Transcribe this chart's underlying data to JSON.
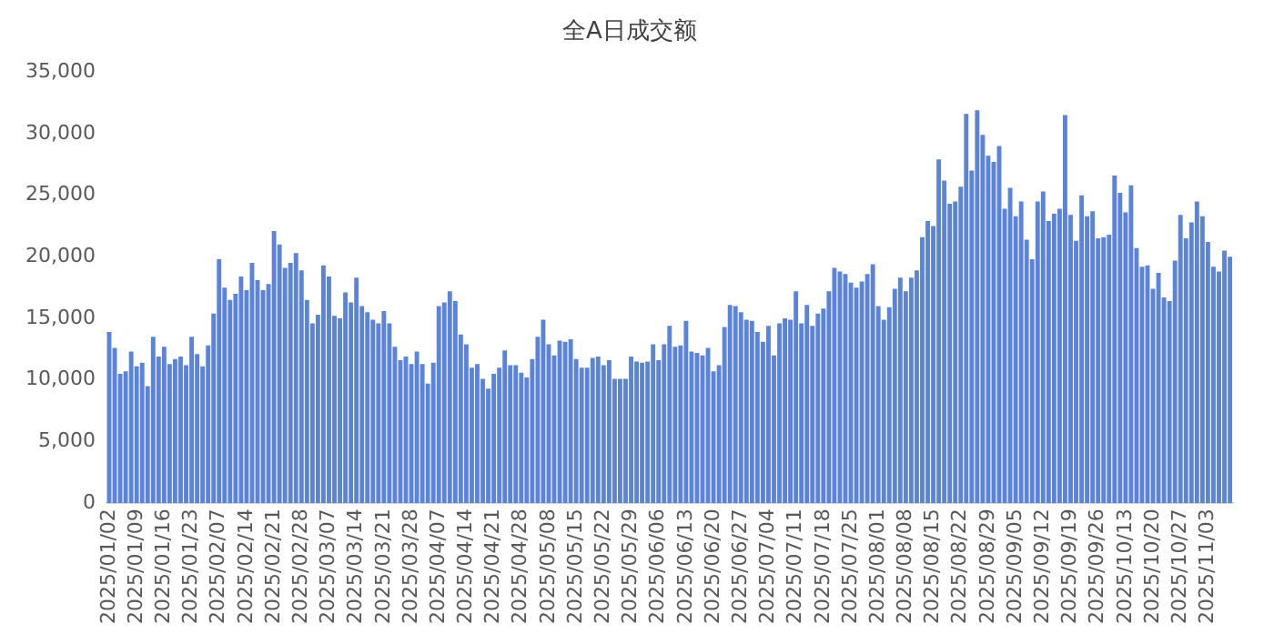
{
  "chart_data": {
    "type": "bar",
    "title": "全A日成交额",
    "color": "#5b83d9",
    "grid": false,
    "legend": false,
    "ylim": [
      0,
      35000
    ],
    "yticks": [
      0,
      {
        "value": 5000,
        "label": "5,000"
      },
      {
        "value": 10000,
        "label": "10,000"
      },
      {
        "value": 15000,
        "label": "15,000"
      },
      {
        "value": 20000,
        "label": "20,000"
      },
      {
        "value": 25000,
        "label": "25,000"
      },
      {
        "value": 30000,
        "label": "30,000"
      },
      {
        "value": 35000,
        "label": "35,000"
      }
    ],
    "categories": [
      "2025/01/02",
      null,
      null,
      null,
      null,
      "2025/01/09",
      null,
      null,
      null,
      null,
      "2025/01/16",
      null,
      null,
      null,
      null,
      "2025/01/23",
      null,
      null,
      null,
      null,
      "2025/02/07",
      null,
      null,
      null,
      null,
      "2025/02/14",
      null,
      null,
      null,
      null,
      "2025/02/21",
      null,
      null,
      null,
      null,
      "2025/02/28",
      null,
      null,
      null,
      null,
      "2025/03/07",
      null,
      null,
      null,
      null,
      "2025/03/14",
      null,
      null,
      null,
      null,
      "2025/03/21",
      null,
      null,
      null,
      null,
      "2025/03/28",
      null,
      null,
      null,
      null,
      "2025/04/07",
      null,
      null,
      null,
      null,
      "2025/04/14",
      null,
      null,
      null,
      null,
      "2025/04/21",
      null,
      null,
      null,
      null,
      "2025/04/28",
      null,
      null,
      null,
      null,
      "2025/05/08",
      null,
      null,
      null,
      null,
      "2025/05/15",
      null,
      null,
      null,
      null,
      "2025/05/22",
      null,
      null,
      null,
      null,
      "2025/05/29",
      null,
      null,
      null,
      null,
      "2025/06/06",
      null,
      null,
      null,
      null,
      "2025/06/13",
      null,
      null,
      null,
      null,
      "2025/06/20",
      null,
      null,
      null,
      null,
      "2025/06/27",
      null,
      null,
      null,
      null,
      "2025/07/04",
      null,
      null,
      null,
      null,
      "2025/07/11",
      null,
      null,
      null,
      null,
      "2025/07/18",
      null,
      null,
      null,
      null,
      "2025/07/25",
      null,
      null,
      null,
      null,
      "2025/08/01",
      null,
      null,
      null,
      null,
      "2025/08/08",
      null,
      null,
      null,
      null,
      "2025/08/15",
      null,
      null,
      null,
      null,
      "2025/08/22",
      null,
      null,
      null,
      null,
      "2025/08/29",
      null,
      null,
      null,
      null,
      "2025/09/05",
      null,
      null,
      null,
      null,
      "2025/09/12",
      null,
      null,
      null,
      null,
      "2025/09/19",
      null,
      null,
      null,
      null,
      "2025/09/26",
      null,
      null,
      null,
      null,
      "2025/10/13",
      null,
      null,
      null,
      null,
      "2025/10/20",
      null,
      null,
      null,
      null,
      "2025/10/27",
      null,
      null,
      null,
      null,
      "2025/11/03",
      null,
      null,
      null,
      null
    ],
    "values": [
      13900,
      12600,
      10500,
      10700,
      12300,
      11100,
      11400,
      9500,
      13500,
      11900,
      12700,
      11300,
      11700,
      11900,
      11200,
      13500,
      12100,
      11100,
      12800,
      15400,
      19800,
      17500,
      16500,
      17000,
      18400,
      17300,
      19500,
      18100,
      17300,
      17800,
      22100,
      21000,
      19100,
      19500,
      20300,
      18900,
      16500,
      14600,
      15300,
      19300,
      18400,
      15200,
      15000,
      17100,
      16300,
      18300,
      16000,
      15500,
      14900,
      14600,
      15600,
      14600,
      12700,
      11600,
      11900,
      11300,
      12300,
      11300,
      9700,
      11400,
      16000,
      16300,
      17200,
      16400,
      13700,
      12900,
      11000,
      11300,
      10100,
      9300,
      10500,
      11000,
      12400,
      11200,
      11200,
      10600,
      10200,
      11700,
      13500,
      14900,
      12900,
      12000,
      13200,
      13100,
      13300,
      11700,
      11000,
      11000,
      11800,
      11900,
      11200,
      11600,
      10100,
      10100,
      10100,
      11900,
      11500,
      11400,
      11500,
      12900,
      11600,
      12900,
      14400,
      12700,
      12800,
      14800,
      12300,
      12200,
      12000,
      12600,
      10700,
      11200,
      14300,
      16100,
      16000,
      15500,
      14900,
      14800,
      13900,
      13100,
      14400,
      12000,
      14600,
      15000,
      14900,
      17200,
      14600,
      16100,
      14400,
      15400,
      15800,
      17200,
      19100,
      18800,
      18600,
      17900,
      17500,
      18000,
      18600,
      19400,
      16000,
      14900,
      15900,
      17400,
      18300,
      17200,
      18300,
      18900,
      21600,
      22900,
      22500,
      27900,
      26200,
      24300,
      24500,
      25700,
      31600,
      27000,
      31900,
      29900,
      28200,
      27700,
      29000,
      23900,
      25600,
      23300,
      24500,
      21400,
      19800,
      24500,
      25300,
      22900,
      23500,
      23900,
      31500,
      23400,
      21300,
      25000,
      23300,
      23700,
      21500,
      21600,
      21800,
      26600,
      25200,
      23600,
      25800,
      20700,
      19200,
      19300,
      17400,
      18700,
      16700,
      16400,
      19700,
      23400,
      21500,
      22800,
      24500,
      23300,
      21200,
      19200,
      18800,
      20500,
      20000
    ]
  }
}
